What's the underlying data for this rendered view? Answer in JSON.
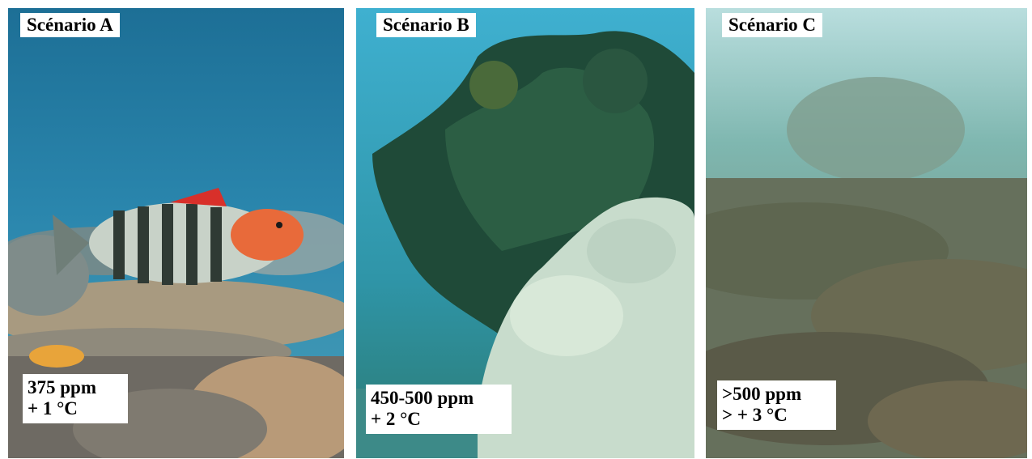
{
  "panels": [
    {
      "title": "Scénario A",
      "co2": "375 ppm",
      "temp": "+ 1 °C"
    },
    {
      "title": "Scénario B",
      "co2": "450-500 ppm",
      "temp": "+ 2 °C"
    },
    {
      "title": "Scénario C",
      "co2": ">500 ppm",
      "temp": "> + 3 °C"
    }
  ]
}
